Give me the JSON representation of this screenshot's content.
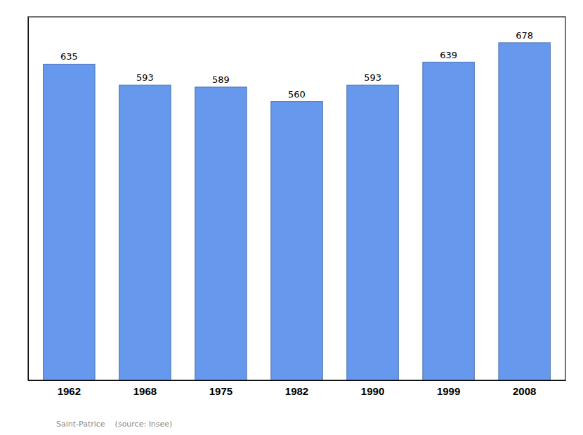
{
  "chart_data": {
    "type": "bar",
    "categories": [
      "1962",
      "1968",
      "1975",
      "1982",
      "1990",
      "1999",
      "2008"
    ],
    "values": [
      635,
      593,
      589,
      560,
      593,
      639,
      678
    ],
    "color": "#6699ee",
    "ylim": [
      0,
      730
    ],
    "data_labels": true,
    "tick_labels": "x",
    "grid": false,
    "caption": "Saint-Patrice    (source: Insee)"
  }
}
